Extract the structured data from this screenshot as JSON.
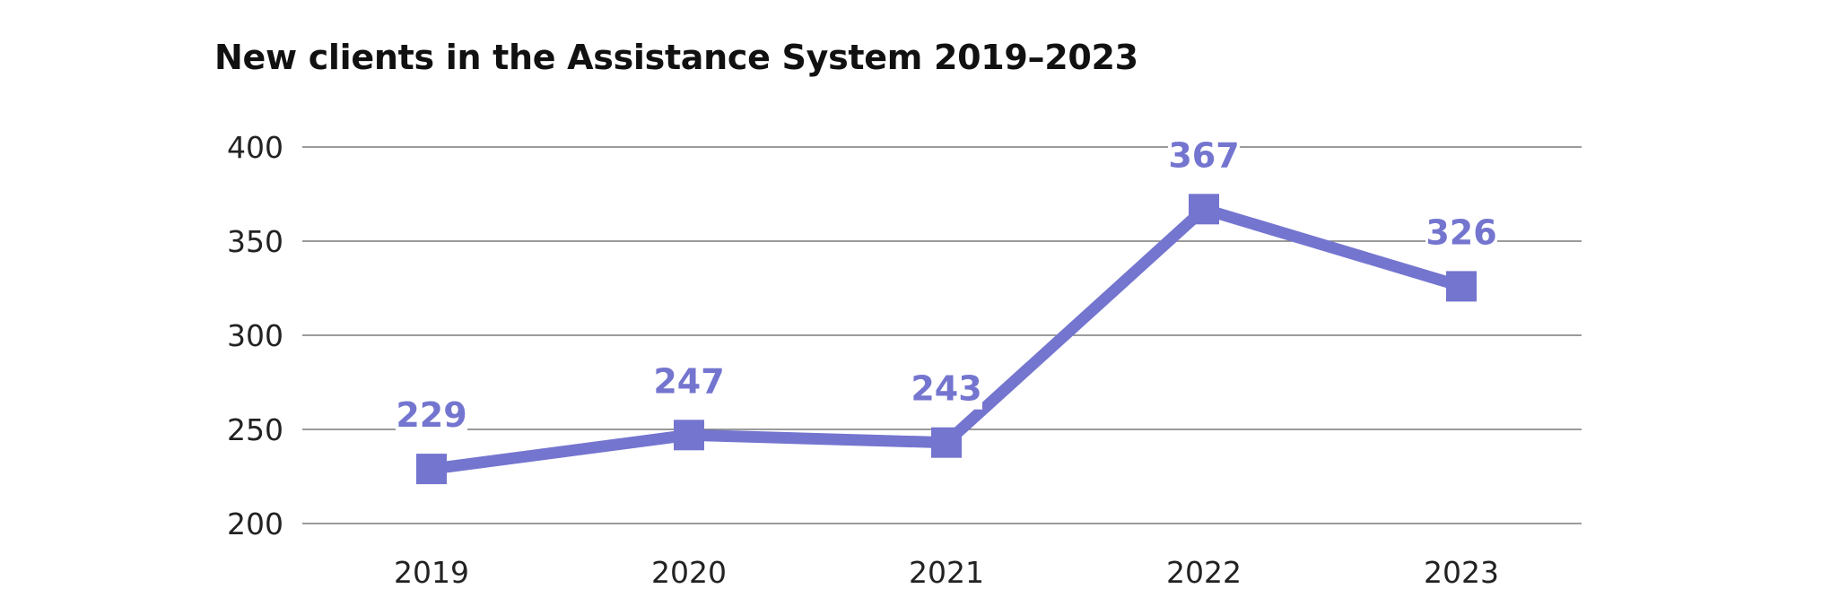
{
  "chart_data": {
    "type": "line",
    "title": "New clients in the Assistance System 2019–2023",
    "xlabel": "",
    "ylabel": "",
    "categories": [
      "2019",
      "2020",
      "2021",
      "2022",
      "2023"
    ],
    "values": [
      229,
      247,
      243,
      367,
      326
    ],
    "ylim": [
      200,
      400
    ],
    "yticks": [
      200,
      250,
      300,
      350,
      400
    ],
    "grid": true,
    "legend": "none",
    "marker": "square",
    "colors": {
      "series": "#7475CF",
      "grid": "#7a7a7a",
      "text": "#222222"
    }
  }
}
